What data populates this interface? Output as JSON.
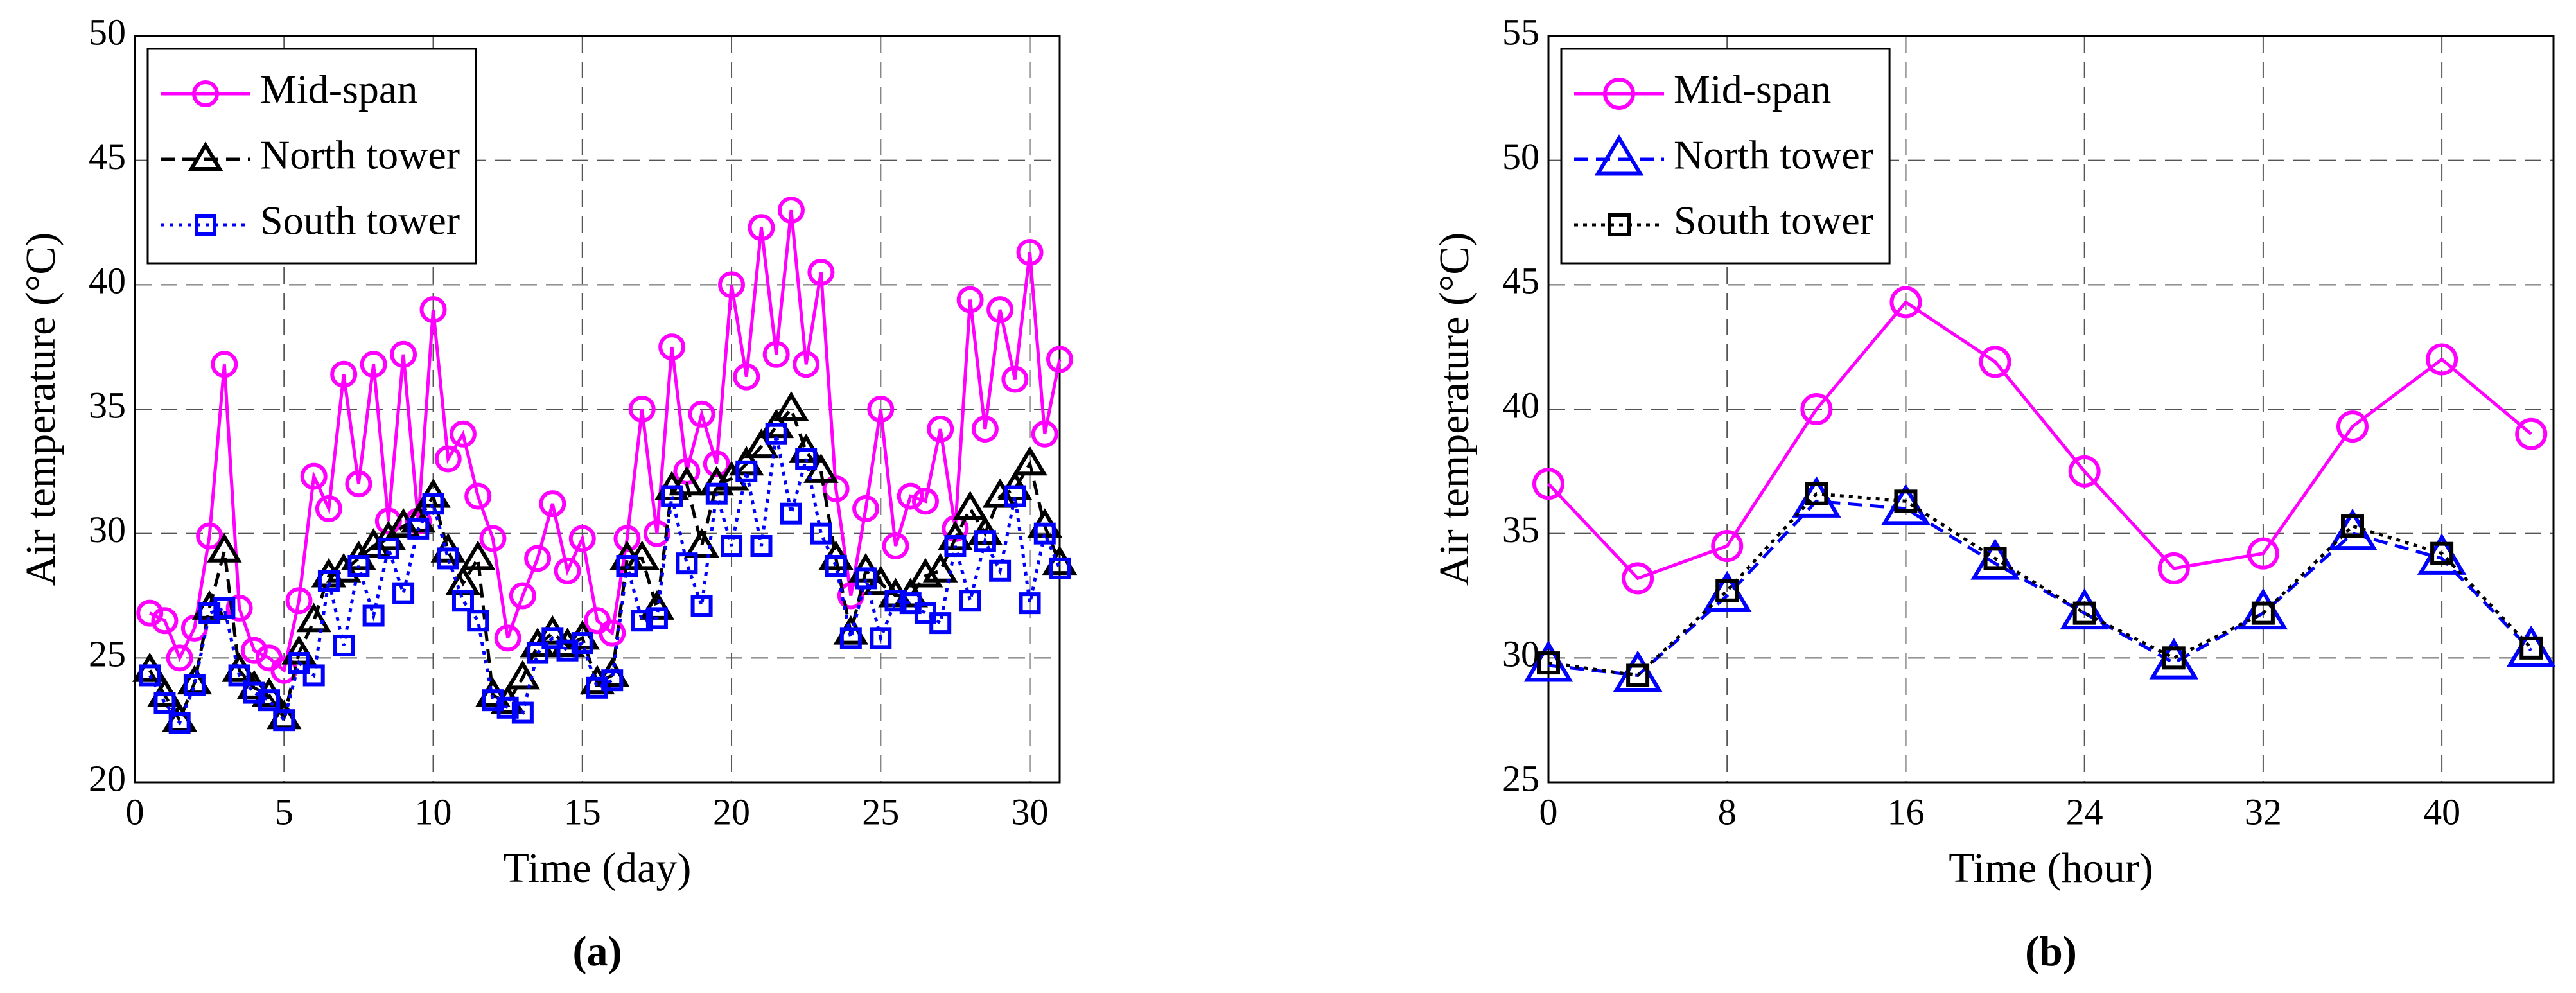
{
  "chart_data": [
    {
      "type": "line",
      "caption": "(a)",
      "xlabel": "Time (day)",
      "ylabel": "Air temperature (°C)",
      "xlim": [
        0,
        31
      ],
      "ylim": [
        20,
        50
      ],
      "xticks": [
        0,
        5,
        10,
        15,
        20,
        25,
        30
      ],
      "yticks": [
        20,
        25,
        30,
        35,
        40,
        45,
        50
      ],
      "grid": true,
      "legend": "upper left",
      "x": [
        0.5,
        1,
        1.5,
        2,
        2.5,
        3,
        3.5,
        4,
        4.5,
        5,
        5.5,
        6,
        6.5,
        7,
        7.5,
        8,
        8.5,
        9,
        9.5,
        10,
        10.5,
        11,
        11.5,
        12,
        12.5,
        13,
        13.5,
        14,
        14.5,
        15,
        15.5,
        16,
        16.5,
        17,
        17.5,
        18,
        18.5,
        19,
        19.5,
        20,
        20.5,
        21,
        21.5,
        22,
        22.5,
        23,
        23.5,
        24,
        24.5,
        25,
        25.5,
        26,
        26.5,
        27,
        27.5,
        28,
        28.5,
        29,
        29.5,
        30,
        30.5,
        31
      ],
      "series": [
        {
          "name": "Mid-span",
          "color": "#ff00ff",
          "marker": "circle",
          "dash": "solid",
          "values": [
            26.8,
            26.5,
            25,
            26.2,
            29.9,
            36.8,
            27,
            25.3,
            25,
            24.5,
            27.3,
            32.3,
            31,
            36.4,
            32,
            36.8,
            30.5,
            37.2,
            30.5,
            39,
            33,
            34,
            31.5,
            29.8,
            25.8,
            27.5,
            29,
            31.2,
            28.5,
            29.8,
            26.5,
            26,
            29.8,
            35,
            30,
            37.5,
            32.5,
            34.8,
            32.8,
            40,
            36.3,
            42.3,
            37.2,
            43,
            36.8,
            40.5,
            31.8,
            27.5,
            31,
            35,
            29.5,
            31.5,
            31.3,
            34.2,
            30.2,
            39.4,
            34.2,
            39,
            36.2,
            41.3,
            34,
            37
          ]
        },
        {
          "name": "North tower",
          "color": "#000000",
          "marker": "triangle",
          "dash": "dashed",
          "values": [
            24.5,
            23.5,
            22.5,
            24,
            27,
            29.3,
            24.5,
            23.8,
            23.5,
            22.6,
            25.2,
            26.5,
            28.3,
            28.5,
            29,
            29.5,
            29.8,
            30.3,
            30.5,
            31.5,
            29.3,
            28,
            29,
            23.5,
            23.2,
            24.2,
            25.5,
            26,
            25.5,
            25.8,
            24,
            24.3,
            29,
            29,
            27,
            31.8,
            32,
            29.5,
            32,
            32.2,
            32.8,
            33.5,
            34.3,
            35,
            33.3,
            32.5,
            29,
            26,
            28.5,
            28,
            27.5,
            27.5,
            28.3,
            28.5,
            29.8,
            31,
            30,
            31.5,
            31.8,
            32.8,
            30.3,
            28.8
          ]
        },
        {
          "name": "South tower",
          "color": "#0000ff",
          "marker": "square",
          "dash": "dotted",
          "values": [
            24.3,
            23.2,
            22.4,
            23.9,
            26.8,
            27,
            24.3,
            23.6,
            23.3,
            22.5,
            24.8,
            24.3,
            28.1,
            25.5,
            28.7,
            26.7,
            29.4,
            27.6,
            30.2,
            31.2,
            29,
            27.3,
            26.5,
            23.3,
            23,
            22.8,
            25.2,
            25.8,
            25.3,
            25.6,
            23.8,
            24.1,
            28.7,
            26.5,
            26.6,
            31.5,
            28.8,
            27.1,
            31.6,
            29.5,
            32.5,
            29.5,
            34,
            30.8,
            33,
            30,
            28.7,
            25.8,
            28.2,
            25.8,
            27.3,
            27.2,
            26.8,
            26.4,
            29.5,
            27.3,
            29.7,
            28.5,
            31.5,
            27.2,
            30,
            28.6
          ]
        }
      ]
    },
    {
      "type": "line",
      "caption": "(b)",
      "xlabel": "Time (hour)",
      "ylabel": "Air temperature (°C)",
      "xlim": [
        0,
        45
      ],
      "ylim": [
        25,
        55
      ],
      "xticks": [
        0,
        8,
        16,
        24,
        32,
        40
      ],
      "yticks": [
        25,
        30,
        35,
        40,
        45,
        50,
        55
      ],
      "grid": true,
      "legend": "upper left",
      "x": [
        0,
        4,
        8,
        12,
        16,
        20,
        24,
        28,
        32,
        36,
        40,
        44
      ],
      "series": [
        {
          "name": "Mid-span",
          "color": "#ff00ff",
          "marker": "circle",
          "dash": "solid",
          "values": [
            37,
            33.2,
            34.5,
            40,
            44.3,
            41.9,
            37.5,
            33.6,
            34.2,
            39.3,
            42,
            39
          ]
        },
        {
          "name": "North tower",
          "color": "#0000ff",
          "marker": "triangle",
          "dash": "dashed",
          "values": [
            29.7,
            29.3,
            32.5,
            36.3,
            36,
            33.8,
            31.8,
            29.8,
            31.8,
            35,
            34,
            30.3
          ]
        },
        {
          "name": "South tower",
          "color": "#000000",
          "marker": "square",
          "dash": "dotted",
          "values": [
            29.8,
            29.3,
            32.7,
            36.6,
            36.3,
            34,
            31.8,
            30,
            31.8,
            35.3,
            34.2,
            30.4
          ]
        }
      ]
    }
  ]
}
